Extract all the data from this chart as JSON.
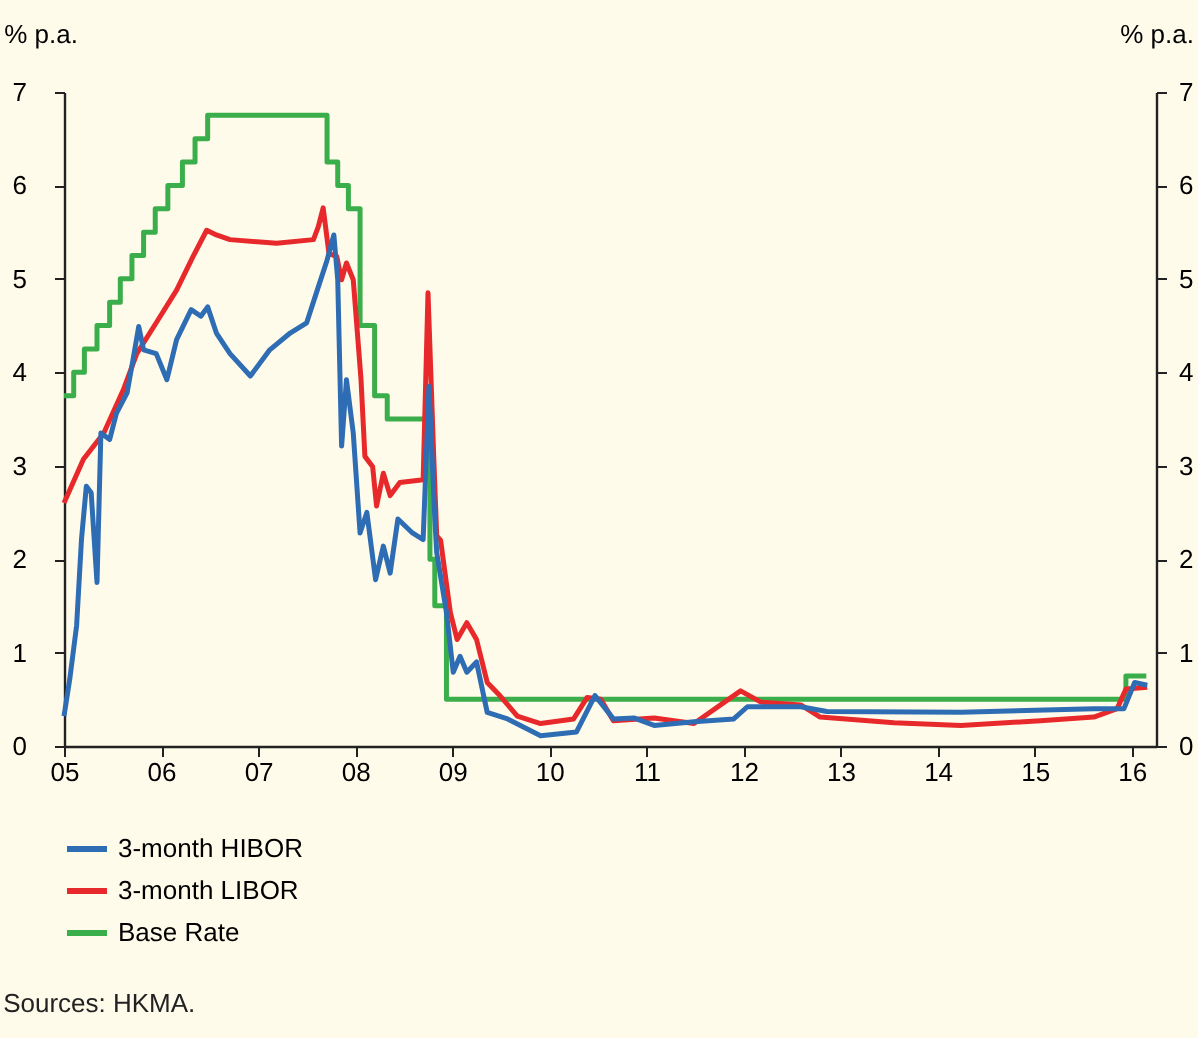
{
  "chart_data": {
    "type": "line",
    "ylabel": "% p.a.",
    "y2label": "% p.a.",
    "xlim": [
      2005,
      2016.25
    ],
    "xticks": [
      {
        "value": 2005,
        "label": "05"
      },
      {
        "value": 2006,
        "label": "06"
      },
      {
        "value": 2007,
        "label": "07"
      },
      {
        "value": 2008,
        "label": "08"
      },
      {
        "value": 2009,
        "label": "09"
      },
      {
        "value": 2010,
        "label": "10"
      },
      {
        "value": 2011,
        "label": "11"
      },
      {
        "value": 2012,
        "label": "12"
      },
      {
        "value": 2013,
        "label": "13"
      },
      {
        "value": 2014,
        "label": "14"
      },
      {
        "value": 2015,
        "label": "15"
      },
      {
        "value": 2016,
        "label": "16"
      }
    ],
    "ylim": [
      0,
      7
    ],
    "yticks": [
      0,
      1,
      2,
      3,
      4,
      5,
      6,
      7
    ],
    "y2lim": [
      0,
      7
    ],
    "y2ticks": [
      0,
      1,
      2,
      3,
      4,
      5,
      6,
      7
    ],
    "grid": false,
    "legend": "bottom left",
    "line_style": "solid",
    "marker": "none",
    "series": [
      {
        "name": "3-month HIBOR",
        "color": "#2e6db4",
        "type": "line",
        "x": [
          2005.0,
          2005.06,
          2005.13,
          2005.18,
          2005.23,
          2005.28,
          2005.34,
          2005.38,
          2005.47,
          2005.54,
          2005.65,
          2005.71,
          2005.77,
          2005.82,
          2005.95,
          2006.06,
          2006.16,
          2006.31,
          2006.41,
          2006.48,
          2006.57,
          2006.71,
          2006.92,
          2007.12,
          2007.33,
          2007.5,
          2007.6,
          2007.71,
          2007.78,
          2007.82,
          2007.86,
          2007.91,
          2007.98,
          2008.05,
          2008.12,
          2008.21,
          2008.29,
          2008.36,
          2008.44,
          2008.59,
          2008.7,
          2008.76,
          2008.82,
          2008.84,
          2008.94,
          2009.01,
          2009.08,
          2009.15,
          2009.25,
          2009.36,
          2009.57,
          2009.91,
          2010.28,
          2010.47,
          2010.66,
          2010.87,
          2011.08,
          2011.49,
          2011.9,
          2012.04,
          2012.59,
          2012.86,
          2014.24,
          2015.61,
          2015.92,
          2016.03,
          2016.16
        ],
        "values": [
          0.32,
          0.72,
          1.29,
          2.21,
          2.78,
          2.71,
          1.75,
          3.35,
          3.28,
          3.56,
          3.78,
          4.13,
          4.49,
          4.24,
          4.2,
          3.92,
          4.35,
          4.67,
          4.6,
          4.7,
          4.42,
          4.2,
          3.96,
          4.24,
          4.42,
          4.53,
          4.85,
          5.2,
          5.47,
          4.99,
          3.21,
          3.92,
          3.35,
          2.28,
          2.5,
          1.78,
          2.14,
          1.85,
          2.43,
          2.28,
          2.21,
          3.85,
          2.43,
          2.07,
          1.43,
          0.79,
          0.96,
          0.79,
          0.9,
          0.36,
          0.29,
          0.11,
          0.15,
          0.54,
          0.29,
          0.3,
          0.22,
          0.26,
          0.29,
          0.42,
          0.42,
          0.37,
          0.36,
          0.4,
          0.4,
          0.68,
          0.65
        ]
      },
      {
        "name": "3-month LIBOR",
        "color": "#e8292b",
        "type": "line",
        "x": [
          2005.0,
          2005.2,
          2005.41,
          2005.61,
          2005.75,
          2005.95,
          2006.16,
          2006.33,
          2006.47,
          2006.57,
          2006.71,
          2007.19,
          2007.57,
          2007.62,
          2007.67,
          2007.73,
          2007.81,
          2007.86,
          2007.91,
          2007.98,
          2008.06,
          2008.1,
          2008.18,
          2008.22,
          2008.29,
          2008.36,
          2008.46,
          2008.7,
          2008.75,
          2008.81,
          2008.84,
          2008.88,
          2008.98,
          2009.05,
          2009.15,
          2009.25,
          2009.36,
          2009.49,
          2009.67,
          2009.91,
          2010.25,
          2010.39,
          2010.53,
          2010.66,
          2011.08,
          2011.49,
          2011.97,
          2012.18,
          2012.59,
          2012.79,
          2013.55,
          2014.24,
          2015.06,
          2015.61,
          2015.85,
          2015.94,
          2016.16
        ],
        "values": [
          2.6,
          3.07,
          3.35,
          3.81,
          4.2,
          4.53,
          4.88,
          5.24,
          5.52,
          5.47,
          5.42,
          5.38,
          5.42,
          5.56,
          5.76,
          5.27,
          5.24,
          4.99,
          5.17,
          4.99,
          3.92,
          3.1,
          2.99,
          2.57,
          2.92,
          2.68,
          2.82,
          2.85,
          4.85,
          3.07,
          2.25,
          2.2,
          1.43,
          1.14,
          1.32,
          1.14,
          0.68,
          0.54,
          0.32,
          0.24,
          0.29,
          0.52,
          0.5,
          0.27,
          0.3,
          0.24,
          0.59,
          0.47,
          0.44,
          0.31,
          0.25,
          0.22,
          0.27,
          0.31,
          0.4,
          0.61,
          0.63
        ]
      },
      {
        "name": "Base Rate",
        "color": "#3aae4a",
        "type": "step",
        "x": [
          2005.0,
          2005.1,
          2005.21,
          2005.34,
          2005.47,
          2005.58,
          2005.7,
          2005.82,
          2005.94,
          2006.07,
          2006.22,
          2006.35,
          2006.48,
          2007.71,
          2007.82,
          2007.93,
          2008.05,
          2008.2,
          2008.33,
          2008.77,
          2008.82,
          2008.94,
          2015.94,
          2016.15
        ],
        "values": [
          3.75,
          4.0,
          4.25,
          4.5,
          4.75,
          5.0,
          5.25,
          5.5,
          5.75,
          6.0,
          6.25,
          6.5,
          6.75,
          6.25,
          6.0,
          5.75,
          4.5,
          3.75,
          3.5,
          2.0,
          1.5,
          0.5,
          0.75,
          0.75
        ]
      }
    ],
    "annotations": [
      "Sources: HKMA."
    ]
  }
}
